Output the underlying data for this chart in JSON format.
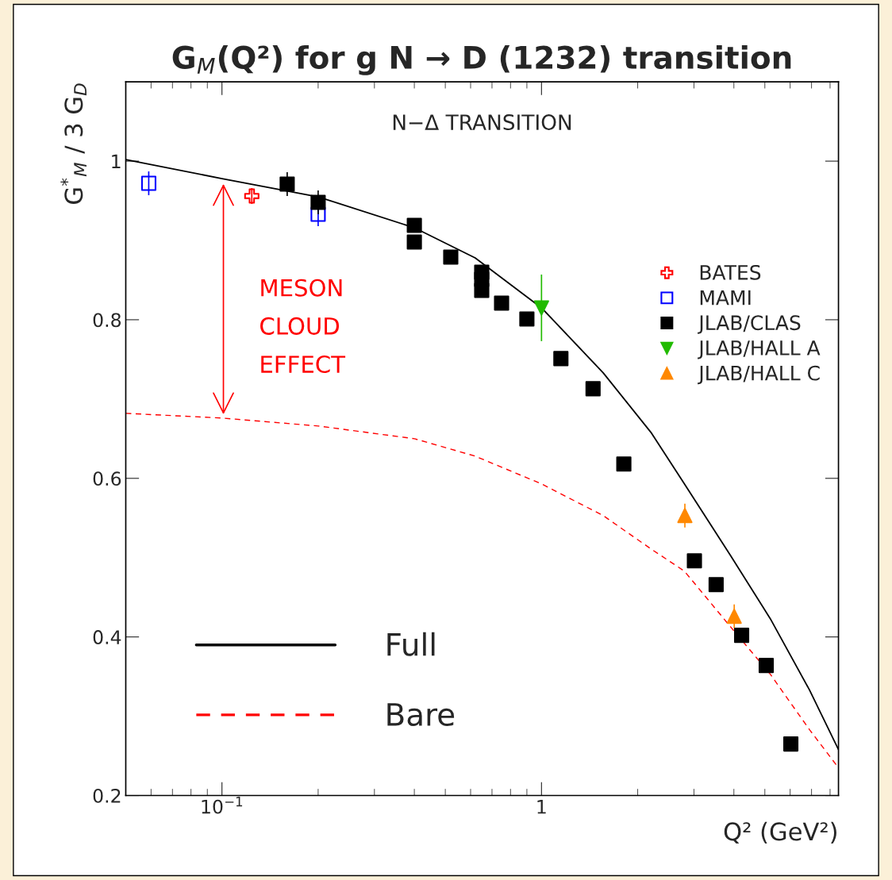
{
  "chart_data": {
    "type": "scatter",
    "title": "G$_{M}$(Q²) for g N → D (1232) transition",
    "xlabel": "Q² (GeV²)",
    "ylabel": "G$^{*}$$_{M}$ / 3 G$_{D}$",
    "log": "x",
    "xlim": [
      0.05,
      8.5
    ],
    "xticks": [
      {
        "value": 0.1,
        "label": "10$^{−1}$"
      },
      1
    ],
    "ylim": [
      0.2,
      1.1
    ],
    "yticks": [
      0.2,
      0.4,
      0.6,
      0.8,
      1
    ],
    "grid": false,
    "legend": "right",
    "annotations": [
      "N−Δ TRANSITION",
      "MESON\nCLOUD\nEFFECT"
    ],
    "series": [
      {
        "name": "BATES",
        "marker": "cross_open",
        "color": "#ff0000",
        "x": [
          0.124
        ],
        "values": [
          0.956
        ],
        "errors": [
          0.01
        ]
      },
      {
        "name": "MAMI",
        "marker": "square_open",
        "color": "#0000ff",
        "x": [
          0.059,
          0.2
        ],
        "values": [
          0.972,
          0.933
        ],
        "errors": [
          0.015,
          0.015
        ]
      },
      {
        "name": "JLAB/CLAS",
        "marker": "square",
        "color": "#000000",
        "x": [
          0.16,
          0.2,
          0.4,
          0.4,
          0.52,
          0.65,
          0.65,
          0.65,
          0.75,
          0.9,
          1.15,
          1.45,
          1.81,
          3.01,
          3.52,
          4.23,
          5.05,
          6.03
        ],
        "values": [
          0.971,
          0.948,
          0.919,
          0.898,
          0.879,
          0.86,
          0.851,
          0.837,
          0.821,
          0.801,
          0.751,
          0.713,
          0.618,
          0.496,
          0.466,
          0.402,
          0.364,
          0.265
        ],
        "errors": [
          0.015,
          0.015,
          null,
          null,
          null,
          null,
          null,
          null,
          null,
          null,
          null,
          null,
          null,
          null,
          null,
          null,
          null,
          null
        ]
      },
      {
        "name": "JLAB/HALL A",
        "marker": "triangle_down",
        "color": "#22bb00",
        "x": [
          1.0
        ],
        "values": [
          0.815
        ],
        "errors": [
          0.042
        ]
      },
      {
        "name": "JLAB/HALL C",
        "marker": "triangle",
        "color": "#ff8800",
        "x": [
          2.81,
          4.01
        ],
        "values": [
          0.553,
          0.426
        ],
        "errors": [
          0.015,
          0.015
        ]
      },
      {
        "name": "Full",
        "type": "line",
        "line_style": "solid",
        "color": "#000000",
        "x": [
          0.05,
          0.1,
          0.2,
          0.4,
          0.62,
          1,
          1.56,
          2.2,
          2.8,
          3.9,
          5.2,
          6.9,
          8.5
        ],
        "values": [
          1.002,
          0.978,
          0.955,
          0.916,
          0.878,
          0.815,
          0.733,
          0.658,
          0.593,
          0.503,
          0.423,
          0.333,
          0.258
        ]
      },
      {
        "name": "Bare",
        "type": "line",
        "line_style": "dashed",
        "color": "#ff0000",
        "x": [
          0.05,
          0.1,
          0.2,
          0.4,
          0.62,
          1,
          1.56,
          2.2,
          2.8,
          3.9,
          5.2,
          6.9,
          8.5
        ],
        "values": [
          0.682,
          0.676,
          0.666,
          0.65,
          0.628,
          0.593,
          0.553,
          0.511,
          0.483,
          0.413,
          0.353,
          0.283,
          0.235
        ]
      }
    ]
  }
}
